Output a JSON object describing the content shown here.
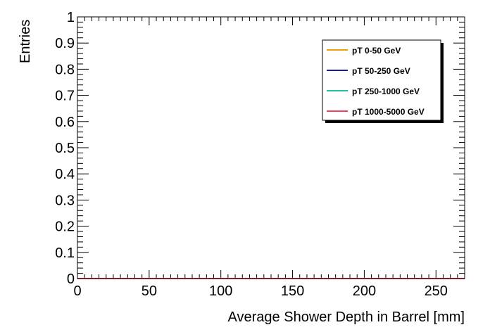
{
  "chart_data": {
    "type": "line",
    "title": "",
    "xlabel": "Average Shower Depth in Barrel [mm]",
    "ylabel": "Entries",
    "xlim": [
      0,
      270
    ],
    "ylim": [
      0,
      1
    ],
    "x_ticks": [
      0,
      50,
      100,
      150,
      200,
      250
    ],
    "y_ticks": [
      0,
      0.1,
      0.2,
      0.3,
      0.4,
      0.5,
      0.6,
      0.7,
      0.8,
      0.9,
      1
    ],
    "y_tick_labels": [
      "0",
      "0.1",
      "0.2",
      "0.3",
      "0.4",
      "0.5",
      "0.6",
      "0.7",
      "0.8",
      "0.9",
      "1"
    ],
    "legend_position": "top-right",
    "grid": false,
    "series": [
      {
        "name": "pT 0-50 GeV",
        "color": "#f0a000",
        "x": [
          0,
          270
        ],
        "y": [
          0,
          0
        ]
      },
      {
        "name": "pT 50-250 GeV",
        "color": "#1a1a9a",
        "x": [
          0,
          270
        ],
        "y": [
          0,
          0
        ]
      },
      {
        "name": "pT 250-1000 GeV",
        "color": "#20c0a0",
        "x": [
          0,
          270
        ],
        "y": [
          0,
          0
        ]
      },
      {
        "name": "pT 1000-5000 GeV",
        "color": "#f04060",
        "x": [
          0,
          270
        ],
        "y": [
          0,
          0
        ]
      }
    ]
  }
}
